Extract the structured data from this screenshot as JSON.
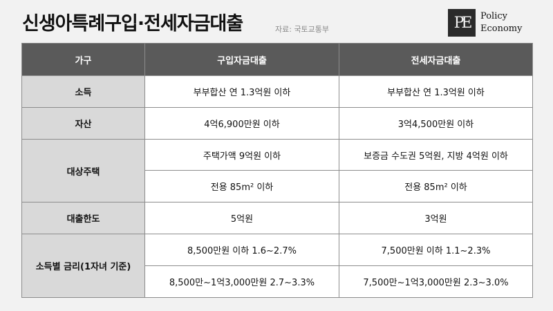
{
  "header": {
    "title": "신생아특례구입·전세자금대출",
    "source": "자료: 국토교통부"
  },
  "logo": {
    "mark": "PE",
    "line1": "Policy",
    "line2": "Economy"
  },
  "table": {
    "columns": [
      "가구",
      "구입자금대출",
      "전세자금대출"
    ],
    "rows": {
      "income": {
        "label": "소득",
        "purchase": "부부합산 연 1.3억원 이하",
        "jeonse": "부부합산 연 1.3억원 이하"
      },
      "assets": {
        "label": "자산",
        "purchase": "4억6,900만원 이하",
        "jeonse": "3억4,500만원 이하"
      },
      "housing": {
        "label": "대상주택",
        "purchase_1": "주택가액 9억원 이하",
        "jeonse_1": "보증금 수도권 5억원, 지방 4억원 이하",
        "purchase_2": "전용 85m² 이하",
        "jeonse_2": "전용 85m² 이하"
      },
      "limit": {
        "label": "대출한도",
        "purchase": "5억원",
        "jeonse": "3억원"
      },
      "rate": {
        "label": "소득별 금리(1자녀 기준)",
        "purchase_1": "8,500만원 이하 1.6~2.7%",
        "jeonse_1": "7,500만원 이하 1.1~2.3%",
        "purchase_2": "8,500만~1억3,000만원 2.7~3.3%",
        "jeonse_2": "7,500만~1억3,000만원 2.3~3.0%"
      }
    }
  }
}
